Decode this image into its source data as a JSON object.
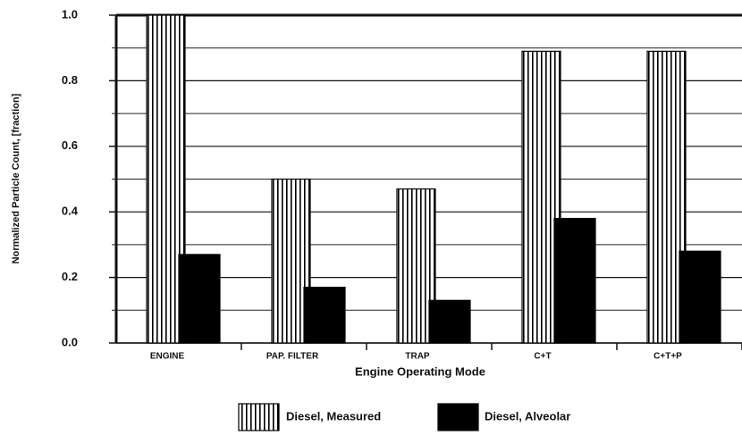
{
  "chart_data": {
    "type": "bar",
    "xlabel": "Engine Operating Mode",
    "ylabel": "Normalized Particle Count, [fraction]",
    "categories": [
      "ENGINE",
      "PAP. FILTER",
      "TRAP",
      "C+T",
      "C+T+P"
    ],
    "series": [
      {
        "name": "Diesel, Measured",
        "color": "#000000",
        "hatch": "vertical",
        "values": [
          1.0,
          0.5,
          0.47,
          0.89,
          0.89
        ]
      },
      {
        "name": "Diesel, Alveolar",
        "color": "#000000",
        "values": [
          0.27,
          0.17,
          0.13,
          0.38,
          0.28
        ]
      }
    ],
    "ylim": [
      0,
      1
    ],
    "yticks": [
      {
        "value": 0,
        "label": "0.0"
      },
      0.2,
      0.4,
      0.6,
      0.8,
      {
        "value": 1,
        "label": "1.0"
      }
    ],
    "minor_yticks": [
      0.1,
      0.3,
      0.5,
      0.7,
      0.9
    ],
    "grid": true,
    "legend": "bottom"
  }
}
